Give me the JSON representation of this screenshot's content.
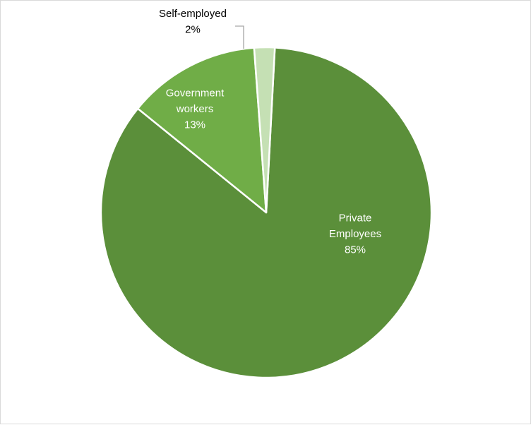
{
  "chart_data": {
    "type": "pie",
    "title": "",
    "slices": [
      {
        "name": "Private Employees",
        "label_lines": [
          "Private",
          "Employees"
        ],
        "percent_label": "85%",
        "value": 85,
        "color": "#5b8f3a",
        "label_color": "#ffffff"
      },
      {
        "name": "Government workers",
        "label_lines": [
          "Government",
          "workers"
        ],
        "percent_label": "13%",
        "value": 13,
        "color": "#70ad47",
        "label_color": "#ffffff"
      },
      {
        "name": "Self-employed",
        "label_lines": [
          "Self-employed"
        ],
        "percent_label": "2%",
        "value": 2,
        "color": "#c5e0b4",
        "label_color": "#000000"
      }
    ],
    "legend": "none",
    "leader_line_color": "#a6a6a6"
  }
}
